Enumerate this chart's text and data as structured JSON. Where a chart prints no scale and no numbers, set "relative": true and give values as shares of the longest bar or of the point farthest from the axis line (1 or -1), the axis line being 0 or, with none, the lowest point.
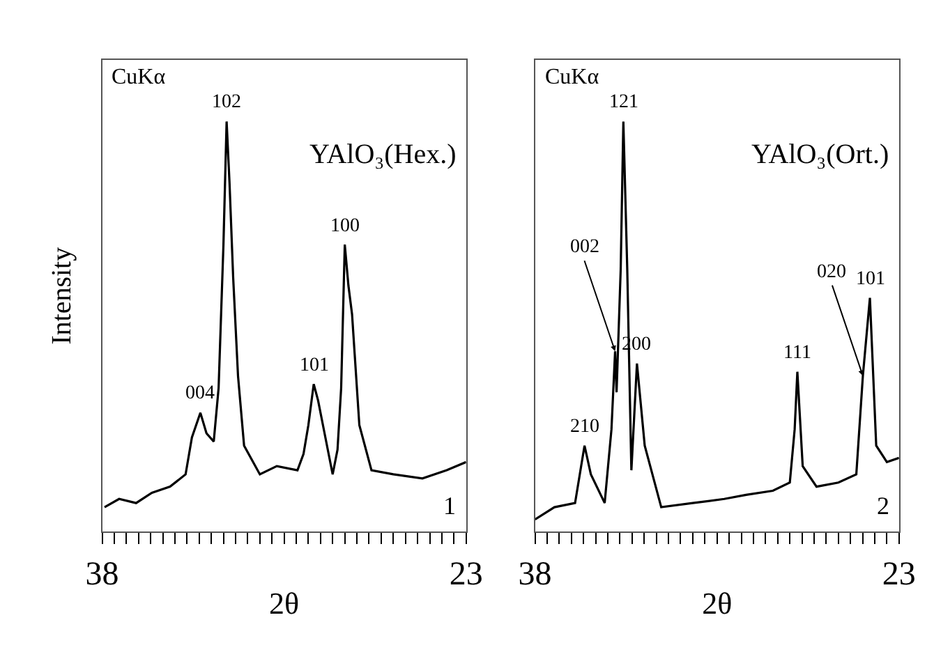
{
  "chart_data": [
    {
      "type": "line",
      "relative": true,
      "xlabel": "2θ",
      "ylabel": "Intensity",
      "xlim": [
        38,
        23
      ],
      "xticks": [
        38,
        {
          "value": 37.5,
          "label": null
        },
        {
          "value": 37,
          "label": null
        },
        {
          "value": 36.5,
          "label": null
        },
        {
          "value": 36,
          "label": null
        },
        {
          "value": 35.5,
          "label": null
        },
        {
          "value": 35,
          "label": null
        },
        {
          "value": 34.5,
          "label": null
        },
        {
          "value": 34,
          "label": null
        },
        {
          "value": 33.5,
          "label": null
        },
        {
          "value": 33,
          "label": null
        },
        {
          "value": 32.5,
          "label": null
        },
        {
          "value": 32,
          "label": null
        },
        {
          "value": 31.5,
          "label": null
        },
        {
          "value": 31,
          "label": null
        },
        {
          "value": 30.5,
          "label": null
        },
        {
          "value": 30,
          "label": null
        },
        {
          "value": 29.5,
          "label": null
        },
        {
          "value": 29,
          "label": null
        },
        {
          "value": 28.5,
          "label": null
        },
        {
          "value": 28,
          "label": null
        },
        {
          "value": 27.5,
          "label": null
        },
        {
          "value": 27,
          "label": null
        },
        {
          "value": 26.5,
          "label": null
        },
        {
          "value": 26,
          "label": null
        },
        {
          "value": 25.5,
          "label": null
        },
        {
          "value": 25,
          "label": null
        },
        {
          "value": 24.5,
          "label": null
        },
        {
          "value": 24,
          "label": null
        },
        {
          "value": 23.5,
          "label": null
        },
        23
      ],
      "x": [
        37.9,
        37.3,
        36.6,
        35.95,
        35.2,
        34.56,
        34.3,
        33.95,
        33.7,
        33.4,
        33.2,
        33.0,
        32.87,
        32.75,
        32.6,
        32.4,
        32.15,
        31.5,
        30.8,
        29.95,
        29.7,
        29.5,
        29.28,
        29.1,
        28.9,
        28.5,
        28.3,
        28.15,
        28.0,
        27.85,
        27.7,
        27.4,
        26.9,
        26.0,
        24.8,
        23.8,
        23.0
      ],
      "series": [
        {
          "color": "#000000",
          "values": [
            0.06,
            0.08,
            0.07,
            0.095,
            0.11,
            0.14,
            0.23,
            0.29,
            0.24,
            0.22,
            0.35,
            0.7,
            1.0,
            0.85,
            0.62,
            0.38,
            0.21,
            0.14,
            0.16,
            0.15,
            0.19,
            0.26,
            0.36,
            0.32,
            0.26,
            0.14,
            0.2,
            0.35,
            0.7,
            0.6,
            0.53,
            0.26,
            0.15,
            0.14,
            0.13,
            0.15,
            0.17
          ]
        }
      ],
      "annotations": [
        "CuKα",
        "YAlO₃(Hex.)",
        "1",
        {
          "text": "004",
          "x": 33.95,
          "y": 0.29
        },
        {
          "text": "102",
          "x": 32.87,
          "y": 1.0
        },
        {
          "text": "101",
          "x": 29.28,
          "y": 0.36
        },
        {
          "text": "100",
          "x": 28.0,
          "y": 0.7
        }
      ]
    },
    {
      "type": "line",
      "relative": true,
      "xlabel": "2θ",
      "xlim": [
        38,
        23
      ],
      "xticks": [
        38,
        {
          "value": 37.5,
          "label": null
        },
        {
          "value": 37,
          "label": null
        },
        {
          "value": 36.5,
          "label": null
        },
        {
          "value": 36,
          "label": null
        },
        {
          "value": 35.5,
          "label": null
        },
        {
          "value": 35,
          "label": null
        },
        {
          "value": 34.5,
          "label": null
        },
        {
          "value": 34,
          "label": null
        },
        {
          "value": 33.5,
          "label": null
        },
        {
          "value": 33,
          "label": null
        },
        {
          "value": 32.5,
          "label": null
        },
        {
          "value": 32,
          "label": null
        },
        {
          "value": 31.5,
          "label": null
        },
        {
          "value": 31,
          "label": null
        },
        {
          "value": 30.5,
          "label": null
        },
        {
          "value": 30,
          "label": null
        },
        {
          "value": 29.5,
          "label": null
        },
        {
          "value": 29,
          "label": null
        },
        {
          "value": 28.5,
          "label": null
        },
        {
          "value": 28,
          "label": null
        },
        {
          "value": 27.5,
          "label": null
        },
        {
          "value": 27,
          "label": null
        },
        {
          "value": 26.5,
          "label": null
        },
        {
          "value": 26,
          "label": null
        },
        {
          "value": 25.5,
          "label": null
        },
        {
          "value": 25,
          "label": null
        },
        {
          "value": 24.5,
          "label": null
        },
        {
          "value": 24,
          "label": null
        },
        {
          "value": 23.5,
          "label": null
        },
        23
      ],
      "x": [
        38.0,
        37.2,
        36.35,
        36.1,
        35.96,
        35.7,
        35.13,
        34.85,
        34.7,
        34.64,
        34.47,
        34.36,
        34.2,
        34.03,
        33.8,
        33.48,
        32.8,
        31.5,
        30.2,
        29.3,
        28.2,
        27.5,
        27.3,
        27.19,
        26.97,
        26.4,
        25.5,
        24.76,
        24.49,
        24.2,
        23.94,
        23.5,
        23.0
      ],
      "series": [
        {
          "color": "#000000",
          "values": [
            0.03,
            0.06,
            0.07,
            0.16,
            0.21,
            0.14,
            0.07,
            0.25,
            0.44,
            0.34,
            0.64,
            1.0,
            0.64,
            0.15,
            0.41,
            0.21,
            0.06,
            0.07,
            0.08,
            0.09,
            0.1,
            0.12,
            0.25,
            0.39,
            0.16,
            0.11,
            0.12,
            0.14,
            0.38,
            0.57,
            0.21,
            0.17,
            0.18
          ]
        }
      ],
      "annotations": [
        "CuKα",
        "YAlO₃(Ort.)",
        "2",
        {
          "text": "210",
          "x": 35.96,
          "y": 0.21
        },
        {
          "text": "002",
          "x": 34.7,
          "y": 0.44
        },
        {
          "text": "121",
          "x": 34.36,
          "y": 1.0
        },
        {
          "text": "200",
          "x": 33.8,
          "y": 0.41
        },
        {
          "text": "111",
          "x": 27.19,
          "y": 0.39
        },
        {
          "text": "020",
          "x": 24.49,
          "y": 0.38
        },
        {
          "text": "101",
          "x": 24.2,
          "y": 0.57
        }
      ]
    }
  ]
}
